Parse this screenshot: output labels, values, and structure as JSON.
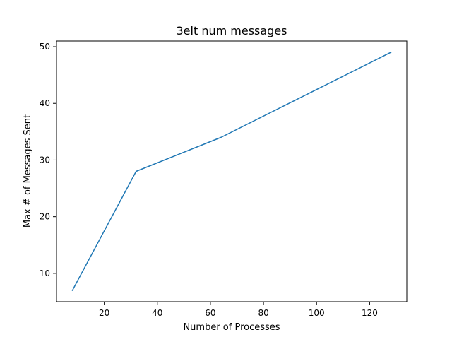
{
  "chart_data": {
    "type": "line",
    "title": "3elt num messages",
    "xlabel": "Number of Processes",
    "ylabel": "Max # of Messages Sent",
    "xlim": [
      2,
      134
    ],
    "ylim": [
      5,
      51
    ],
    "xticks": [
      20,
      40,
      60,
      80,
      100,
      120
    ],
    "yticks": [
      10,
      20,
      30,
      40,
      50
    ],
    "grid": false,
    "series": [
      {
        "x": [
          8,
          32,
          64,
          128
        ],
        "y": [
          7,
          28,
          34,
          49
        ],
        "color": "#1f77b4"
      }
    ]
  }
}
